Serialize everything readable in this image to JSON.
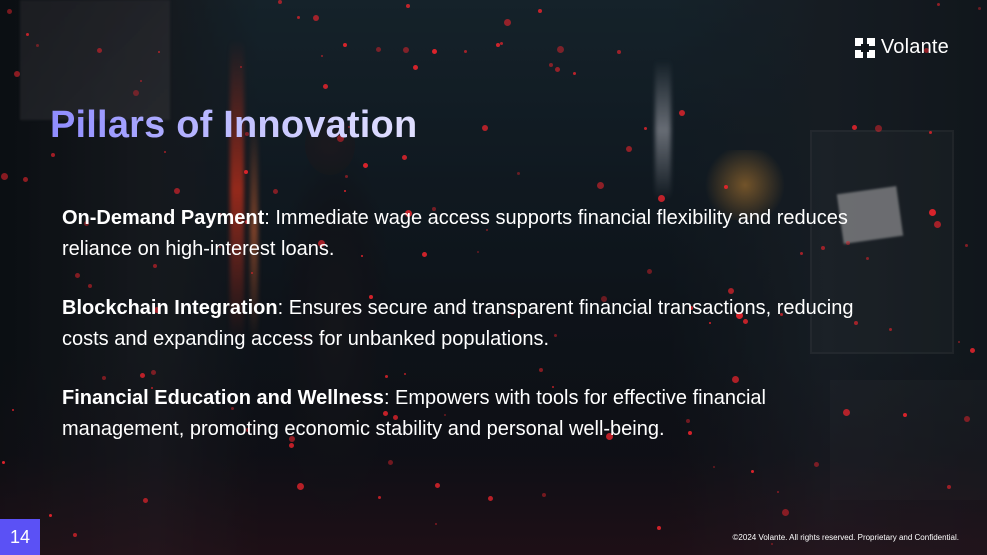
{
  "brand": {
    "logo_text": "Volante",
    "logo_icon": "volante-logo-icon"
  },
  "slide": {
    "title": "Pillars of Innovation",
    "pillars": [
      {
        "heading": "On-Demand Payment",
        "body": ": Immediate wage access supports financial flexibility and reduces reliance on high-interest loans."
      },
      {
        "heading": "Blockchain Integration",
        "body": ": Ensures secure and transparent financial transactions, reducing costs and expanding access for unbanked populations."
      },
      {
        "heading": "Financial Education and Wellness",
        "body": ": Empowers with tools for effective financial management, promoting economic stability and personal well-being."
      }
    ],
    "page_number": "14",
    "footer": "©2024 Volante. All rights reserved. Proprietary and Confidential."
  },
  "colors": {
    "title_gradient_start": "#8f8cff",
    "title_gradient_end": "#e0dfff",
    "page_badge": "#5b51f5",
    "accent_dots": "#e8242c"
  }
}
